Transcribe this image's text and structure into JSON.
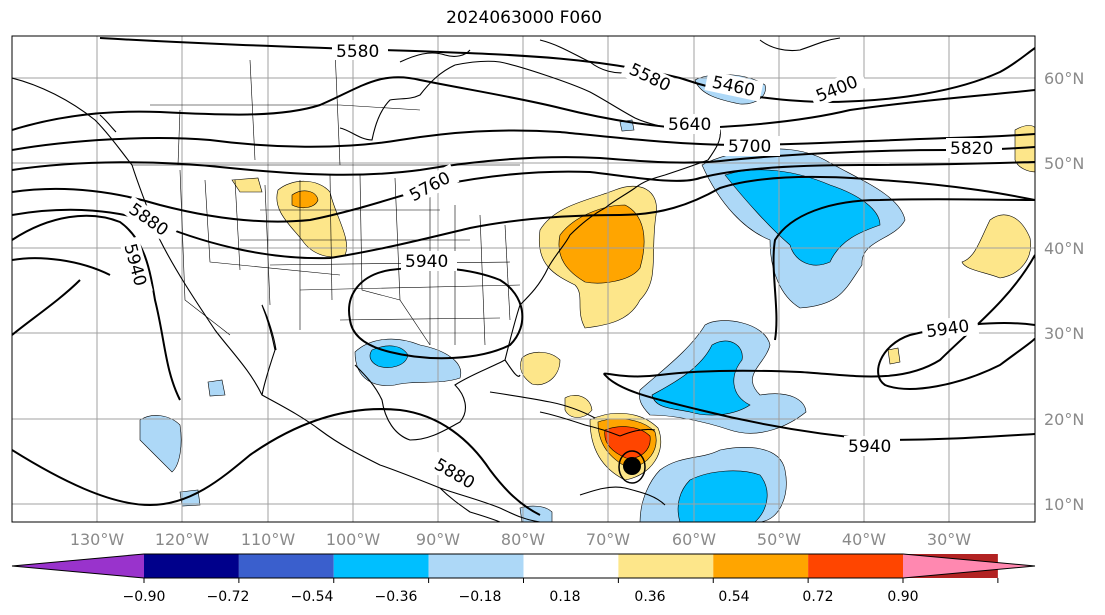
{
  "title": "2024063000 F060",
  "lon_labels": [
    "130°W",
    "120°W",
    "110°W",
    "100°W",
    "90°W",
    "80°W",
    "70°W",
    "60°W",
    "50°W",
    "40°W",
    "30°W"
  ],
  "lat_labels": [
    "60°N",
    "50°N",
    "40°N",
    "30°N",
    "20°N",
    "10°N"
  ],
  "contour_labels": [
    "5580",
    "5580",
    "5460",
    "5400",
    "5640",
    "5700",
    "5820",
    "5760",
    "5880",
    "5940",
    "5940",
    "5940",
    "5940",
    "5880"
  ],
  "colorbar": {
    "ticks": [
      "−0.90",
      "−0.72",
      "−0.54",
      "−0.36",
      "−0.18",
      "0.18",
      "0.36",
      "0.54",
      "0.72",
      "0.90"
    ],
    "colors": [
      "#9933cc",
      "#00008b",
      "#3a5fcd",
      "#00bfff",
      "#add8f7",
      "#ffffff",
      "#fde68a",
      "#ffa500",
      "#ff4500",
      "#b22222",
      "#ff88b0"
    ]
  }
}
